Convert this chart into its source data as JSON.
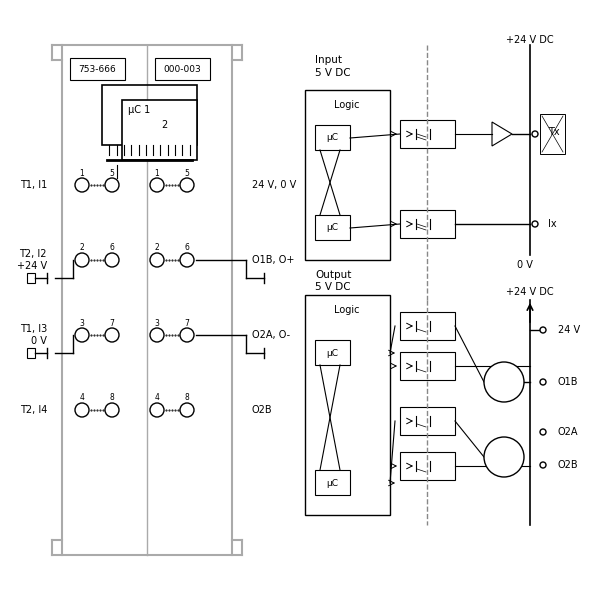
{
  "bg_color": "#ffffff",
  "line_color": "#000000",
  "gray_color": "#888888",
  "light_gray": "#cccccc",
  "title": "",
  "module_labels": [
    "753-666",
    "000-003"
  ],
  "left_labels": [
    "T1, I1",
    "T2, I2\n+24 V",
    "T1, I3\n0 V",
    "T2, I4"
  ],
  "right_labels_left": [
    "24 V, 0 V",
    "O1B, O+",
    "O2A, O-",
    "O2B"
  ],
  "input_title": "Input\n5 V DC",
  "output_title": "Output\n5 V DC",
  "v24_label": "+24 V DC",
  "v24_label2": "+24 V DC",
  "ov_label": "0 V",
  "tx_label": "Tx",
  "ix_label": "Ix",
  "v24_out": "24 V",
  "o1b_label": "O1B",
  "o2a_label": "O2A",
  "o2b_label": "O2B"
}
